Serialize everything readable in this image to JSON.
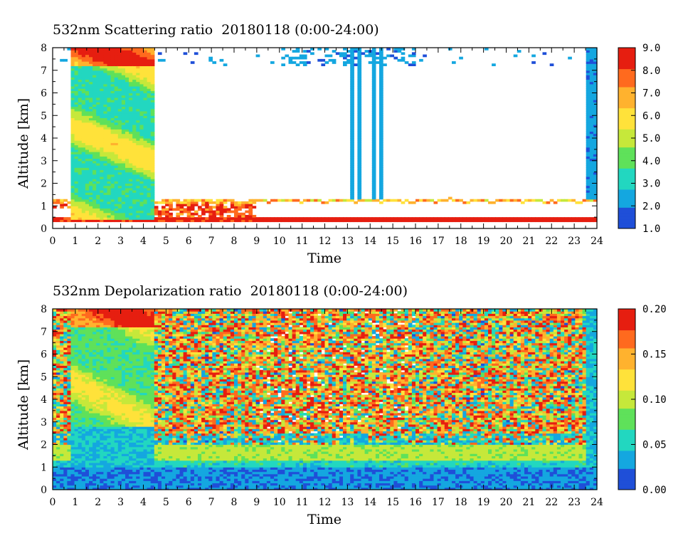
{
  "chart_data": [
    {
      "type": "heatmap",
      "title": "532nm Scattering ratio  20180118 (0:00-24:00)",
      "xlabel": "Time",
      "ylabel": "Altitude [km]",
      "xlim": [
        0,
        24
      ],
      "ylim": [
        0,
        8
      ],
      "x_ticks": [
        "0",
        "1",
        "2",
        "3",
        "4",
        "5",
        "6",
        "7",
        "8",
        "9",
        "10",
        "11",
        "12",
        "13",
        "14",
        "15",
        "16",
        "17",
        "18",
        "19",
        "20",
        "21",
        "22",
        "23",
        "24"
      ],
      "y_ticks": [
        "0",
        "1",
        "2",
        "3",
        "4",
        "5",
        "6",
        "7",
        "8"
      ],
      "colorbar": {
        "range": [
          1.0,
          9.0
        ],
        "ticks": [
          "1.0",
          "2.0",
          "3.0",
          "4.0",
          "5.0",
          "6.0",
          "7.0",
          "8.0",
          "9.0"
        ],
        "colors": [
          "#1f4fd8",
          "#14a7e0",
          "#22d7c0",
          "#5fe15a",
          "#c6e83a",
          "#ffe23a",
          "#ffb22e",
          "#ff6a1e",
          "#e61e10"
        ]
      },
      "features": [
        {
          "desc": "dense layer",
          "x": [
            0.75,
            4.4
          ],
          "y": [
            0.3,
            8.0
          ],
          "value": 3.5
        },
        {
          "desc": "boundary layer",
          "x": [
            0,
            24
          ],
          "y": [
            0.25,
            1.3
          ],
          "value": 8.5
        },
        {
          "desc": "fall streaks",
          "x": [
            13.1,
            14.6
          ],
          "y": [
            1.3,
            8.0
          ],
          "value": 2.0
        },
        {
          "desc": "late layer",
          "x": [
            23.5,
            24
          ],
          "y": [
            1.3,
            8.0
          ],
          "value": 2.2
        }
      ]
    },
    {
      "type": "heatmap",
      "title": "532nm Depolarization ratio  20180118 (0:00-24:00)",
      "xlabel": "Time",
      "ylabel": "Altitude [km]",
      "xlim": [
        0,
        24
      ],
      "ylim": [
        0,
        8
      ],
      "x_ticks": [
        "0",
        "1",
        "2",
        "3",
        "4",
        "5",
        "6",
        "7",
        "8",
        "9",
        "10",
        "11",
        "12",
        "13",
        "14",
        "15",
        "16",
        "17",
        "18",
        "19",
        "20",
        "21",
        "22",
        "23",
        "24"
      ],
      "y_ticks": [
        "0",
        "1",
        "2",
        "3",
        "4",
        "5",
        "6",
        "7",
        "8"
      ],
      "colorbar": {
        "range": [
          0.0,
          0.2
        ],
        "ticks": [
          "0.00",
          "0.05",
          "0.10",
          "0.15",
          "0.20"
        ],
        "colors": [
          "#1f4fd8",
          "#14a7e0",
          "#22d7c0",
          "#5fe15a",
          "#c6e83a",
          "#ffe23a",
          "#ffb22e",
          "#ff6a1e",
          "#e61e10"
        ]
      },
      "features": [
        {
          "desc": "near surface",
          "x": [
            0,
            24
          ],
          "y": [
            0,
            1.0
          ],
          "value": 0.02
        },
        {
          "desc": "mid layer",
          "x": [
            4.4,
            23.5
          ],
          "y": [
            1.0,
            2.0
          ],
          "value": 0.09
        },
        {
          "desc": "noisy upper",
          "x": [
            4.4,
            23.5
          ],
          "y": [
            2.5,
            8.0
          ],
          "value": 0.15
        }
      ]
    }
  ]
}
